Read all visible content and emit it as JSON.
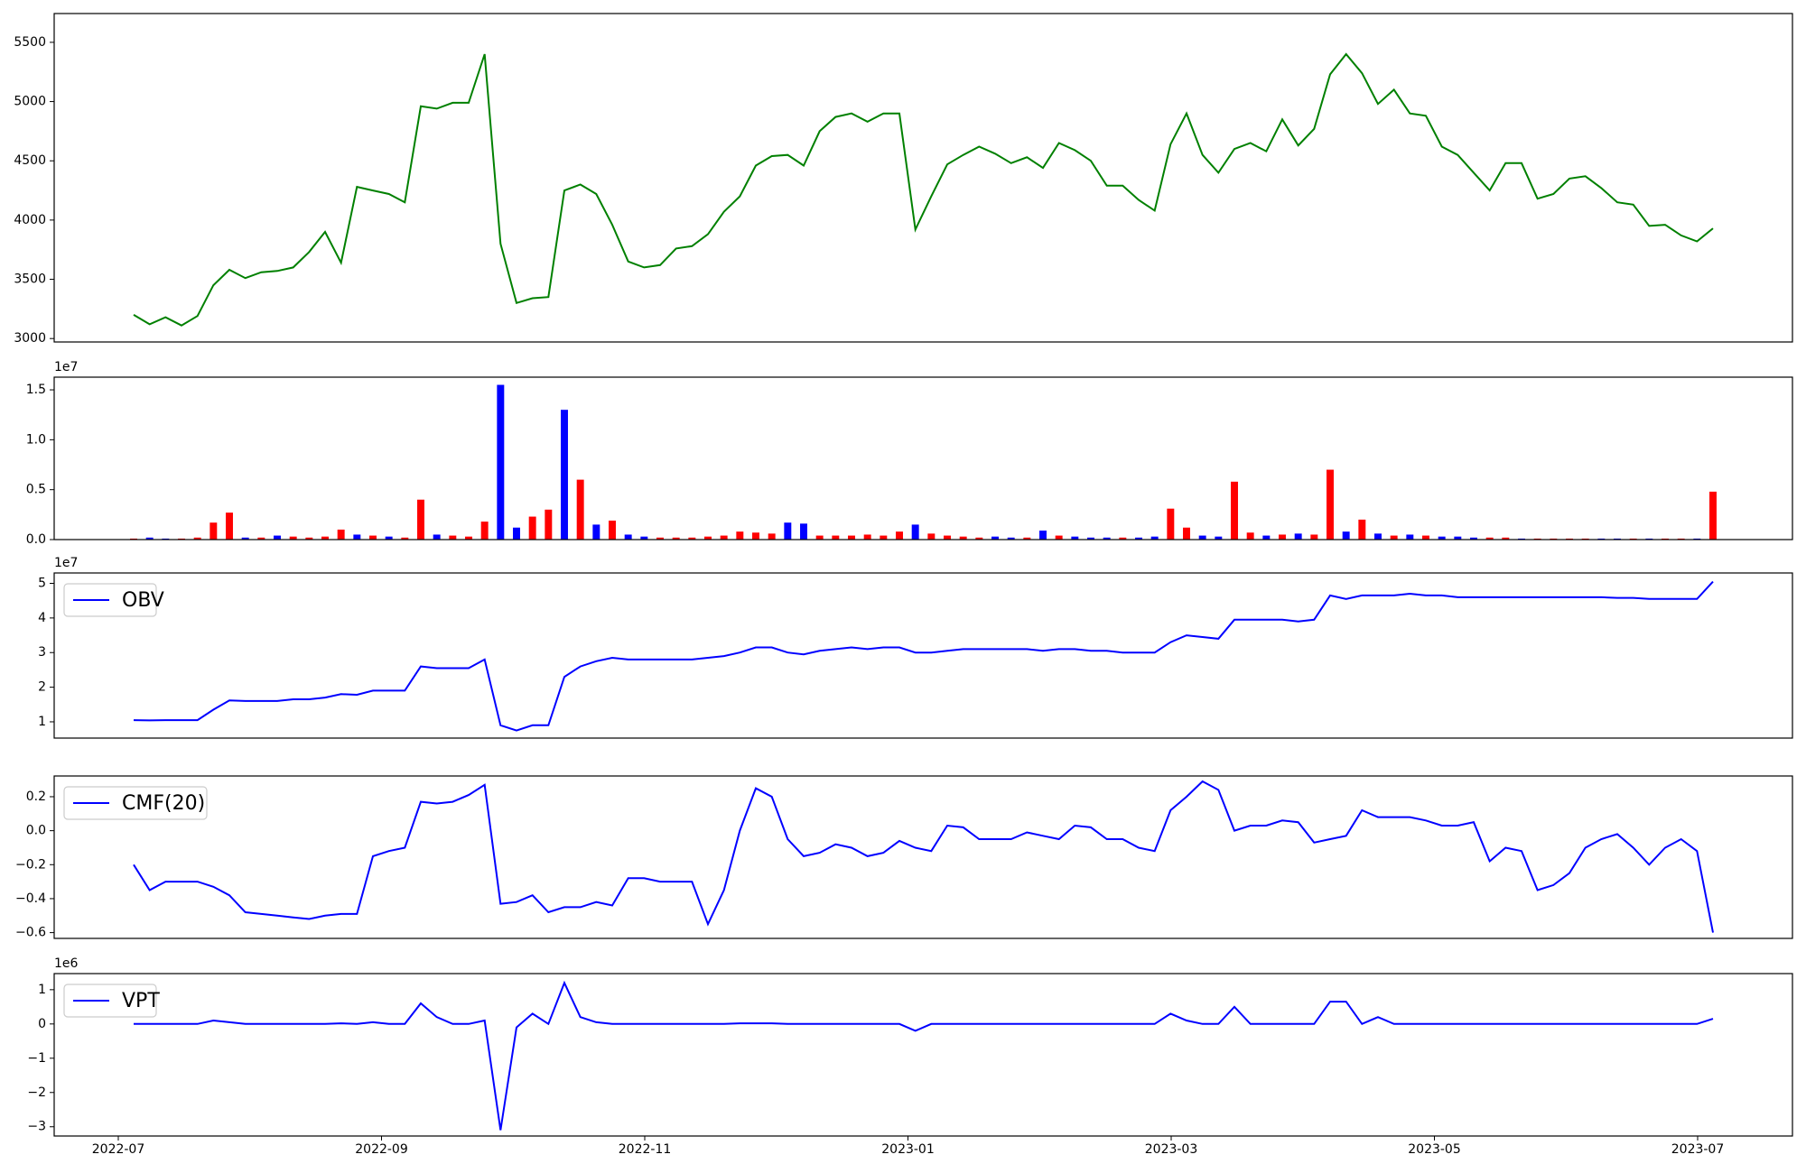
{
  "chart_data": {
    "type": "panels",
    "xticks": [
      "2022-07",
      "2022-09",
      "2022-11",
      "2023-01",
      "2023-03",
      "2023-05",
      "2023-07"
    ],
    "panels": [
      {
        "type": "line",
        "ylim": [
          2971,
          5743
        ],
        "yticks": [
          3000,
          3500,
          4000,
          4500,
          5000,
          5500
        ],
        "series": [
          {
            "color": "#008000",
            "values": [
              3200,
              3120,
              3180,
              3110,
              3190,
              3450,
              3580,
              3510,
              3560,
              3570,
              3600,
              3730,
              3900,
              3640,
              4280,
              4250,
              4220,
              4150,
              4960,
              4940,
              4990,
              4990,
              5400,
              3800,
              3300,
              3340,
              3350,
              4250,
              4300,
              4220,
              3960,
              3650,
              3600,
              3620,
              3760,
              3780,
              3880,
              4070,
              4200,
              4460,
              4540,
              4550,
              4460,
              4750,
              4870,
              4900,
              4830,
              4900,
              4900,
              3920,
              4200,
              4470,
              4550,
              4620,
              4560,
              4480,
              4530,
              4440,
              4650,
              4590,
              4500,
              4290,
              4290,
              4170,
              4080,
              4640,
              4900,
              4550,
              4400,
              4600,
              4650,
              4580,
              4850,
              4630,
              4770,
              5230,
              5400,
              5240,
              4980,
              5100,
              4900,
              4880,
              4620,
              4550,
              4400,
              4250,
              4480,
              4480,
              4180,
              4220,
              4350,
              4370,
              4270,
              4150,
              4130,
              3950,
              3960,
              3870,
              3820,
              3930
            ]
          }
        ]
      },
      {
        "type": "bar",
        "offset_label": "1e7",
        "ylim": [
          0,
          1.627
        ],
        "yticks": [
          {
            "value": 0,
            "label": "0.0"
          },
          0.5,
          {
            "value": 1,
            "label": "1.0"
          },
          1.5
        ],
        "values": [
          0.01,
          0.02,
          0.01,
          0.01,
          0.02,
          0.17,
          0.27,
          0.02,
          0.02,
          0.04,
          0.03,
          0.02,
          0.03,
          0.1,
          0.05,
          0.04,
          0.03,
          0.02,
          0.4,
          0.05,
          0.04,
          0.03,
          0.18,
          1.55,
          0.12,
          0.23,
          0.3,
          1.3,
          0.6,
          0.15,
          0.19,
          0.05,
          0.03,
          0.02,
          0.02,
          0.02,
          0.03,
          0.04,
          0.08,
          0.07,
          0.06,
          0.17,
          0.16,
          0.04,
          0.04,
          0.04,
          0.05,
          0.04,
          0.08,
          0.15,
          0.06,
          0.04,
          0.03,
          0.02,
          0.03,
          0.02,
          0.02,
          0.09,
          0.04,
          0.03,
          0.02,
          0.02,
          0.02,
          0.02,
          0.03,
          0.31,
          0.12,
          0.04,
          0.03,
          0.58,
          0.07,
          0.04,
          0.05,
          0.06,
          0.05,
          0.7,
          0.08,
          0.2,
          0.06,
          0.04,
          0.05,
          0.04,
          0.03,
          0.03,
          0.02,
          0.02,
          0.02,
          0.01,
          0.01,
          0.01,
          0.01,
          0.01,
          0.01,
          0.01,
          0.01,
          0.01,
          0.01,
          0.01,
          0.01,
          0.48
        ],
        "colors": [
          "red",
          "blue",
          "blue",
          "red",
          "red",
          "red",
          "red",
          "blue",
          "red",
          "blue",
          "red",
          "red",
          "red",
          "red",
          "blue",
          "red",
          "blue",
          "red",
          "red",
          "blue",
          "red",
          "red",
          "red",
          "blue",
          "blue",
          "red",
          "red",
          "blue",
          "red",
          "blue",
          "red",
          "blue",
          "blue",
          "red",
          "red",
          "red",
          "red",
          "red",
          "red",
          "red",
          "red",
          "blue",
          "blue",
          "red",
          "red",
          "red",
          "red",
          "red",
          "red",
          "blue",
          "red",
          "red",
          "red",
          "red",
          "blue",
          "blue",
          "red",
          "blue",
          "red",
          "blue",
          "blue",
          "blue",
          "red",
          "blue",
          "blue",
          "red",
          "red",
          "blue",
          "blue",
          "red",
          "red",
          "blue",
          "red",
          "blue",
          "red",
          "red",
          "blue",
          "red",
          "blue",
          "red",
          "blue",
          "red",
          "blue",
          "blue",
          "blue",
          "red",
          "red",
          "blue",
          "red",
          "red",
          "red",
          "red",
          "blue",
          "blue",
          "red",
          "blue",
          "red",
          "red",
          "blue",
          "red"
        ]
      },
      {
        "type": "line",
        "offset_label": "1e7",
        "legend": "upper left",
        "ylim": [
          0.53,
          5.3
        ],
        "yticks": [
          1,
          2,
          3,
          4,
          5
        ],
        "series": [
          {
            "name": "OBV",
            "color": "#0000ff",
            "values": [
              1.05,
              1.04,
              1.05,
              1.05,
              1.05,
              1.35,
              1.62,
              1.6,
              1.6,
              1.6,
              1.65,
              1.65,
              1.7,
              1.8,
              1.78,
              1.9,
              1.9,
              1.9,
              2.6,
              2.55,
              2.55,
              2.55,
              2.8,
              0.9,
              0.75,
              0.9,
              0.9,
              2.3,
              2.6,
              2.75,
              2.85,
              2.8,
              2.8,
              2.8,
              2.8,
              2.8,
              2.85,
              2.9,
              3.0,
              3.15,
              3.15,
              3.0,
              2.95,
              3.05,
              3.1,
              3.15,
              3.1,
              3.15,
              3.15,
              3.0,
              3.0,
              3.05,
              3.1,
              3.1,
              3.1,
              3.1,
              3.1,
              3.05,
              3.1,
              3.1,
              3.05,
              3.05,
              3.0,
              3.0,
              3.0,
              3.3,
              3.5,
              3.45,
              3.4,
              3.95,
              3.95,
              3.95,
              3.95,
              3.9,
              3.95,
              4.65,
              4.55,
              4.65,
              4.65,
              4.65,
              4.7,
              4.65,
              4.65,
              4.6,
              4.6,
              4.6,
              4.6,
              4.6,
              4.6,
              4.6,
              4.6,
              4.6,
              4.6,
              4.58,
              4.58,
              4.55,
              4.55,
              4.55,
              4.55,
              5.05
            ]
          }
        ]
      },
      {
        "type": "line",
        "legend": "upper left",
        "ylim": [
          -0.634,
          0.322
        ],
        "yticks": [
          {
            "value": -0.6,
            "label": "−0.6"
          },
          {
            "value": -0.4,
            "label": "−0.4"
          },
          {
            "value": -0.2,
            "label": "−0.2"
          },
          {
            "value": 0,
            "label": "0.0"
          },
          0.2
        ],
        "series": [
          {
            "name": "CMF(20)",
            "color": "#0000ff",
            "values": [
              -0.2,
              -0.35,
              -0.3,
              -0.3,
              -0.3,
              -0.33,
              -0.38,
              -0.48,
              -0.49,
              -0.5,
              -0.51,
              -0.52,
              -0.5,
              -0.49,
              -0.49,
              -0.15,
              -0.12,
              -0.1,
              0.17,
              0.16,
              0.17,
              0.21,
              0.27,
              -0.43,
              -0.42,
              -0.38,
              -0.48,
              -0.45,
              -0.45,
              -0.42,
              -0.44,
              -0.28,
              -0.28,
              -0.3,
              -0.3,
              -0.3,
              -0.55,
              -0.35,
              0.0,
              0.25,
              0.2,
              -0.05,
              -0.15,
              -0.13,
              -0.08,
              -0.1,
              -0.15,
              -0.13,
              -0.06,
              -0.1,
              -0.12,
              0.03,
              0.02,
              -0.05,
              -0.05,
              -0.05,
              -0.01,
              -0.03,
              -0.05,
              0.03,
              0.02,
              -0.05,
              -0.05,
              -0.1,
              -0.12,
              0.12,
              0.2,
              0.29,
              0.24,
              0.0,
              0.03,
              0.03,
              0.06,
              0.05,
              -0.07,
              -0.05,
              -0.03,
              0.12,
              0.08,
              0.08,
              0.08,
              0.06,
              0.03,
              0.03,
              0.05,
              -0.18,
              -0.1,
              -0.12,
              -0.35,
              -0.32,
              -0.25,
              -0.1,
              -0.05,
              -0.02,
              -0.1,
              -0.2,
              -0.1,
              -0.05,
              -0.12,
              -0.6
            ]
          }
        ]
      },
      {
        "type": "line",
        "offset_label": "1e6",
        "legend": "upper left",
        "ylim": [
          -3.27,
          1.47
        ],
        "yticks": [
          {
            "value": -3,
            "label": "−3"
          },
          {
            "value": -2,
            "label": "−2"
          },
          {
            "value": -1,
            "label": "−1"
          },
          0,
          1
        ],
        "series": [
          {
            "name": "VPT",
            "color": "#0000ff",
            "values": [
              0,
              0,
              0,
              0,
              0,
              0.1,
              0.05,
              0,
              0,
              0,
              0,
              0,
              0,
              0.02,
              0,
              0.05,
              0,
              0,
              0.6,
              0.2,
              0,
              0,
              0.1,
              -3.1,
              -0.1,
              0.3,
              0,
              1.2,
              0.2,
              0.05,
              0,
              0,
              0,
              0,
              0,
              0,
              0,
              0,
              0.02,
              0.02,
              0.02,
              0,
              0,
              0,
              0,
              0,
              0,
              0,
              0,
              -0.2,
              0,
              0,
              0,
              0,
              0,
              0,
              0,
              0,
              0,
              0,
              0,
              0,
              0,
              0,
              0,
              0.3,
              0.1,
              0,
              0,
              0.5,
              0,
              0,
              0,
              0,
              0,
              0.65,
              0.65,
              0,
              0.2,
              0,
              0,
              0,
              0,
              0,
              0,
              0,
              0,
              0,
              0,
              0,
              0,
              0,
              0,
              0,
              0,
              0,
              0,
              0,
              0,
              0.15
            ]
          }
        ]
      }
    ]
  }
}
